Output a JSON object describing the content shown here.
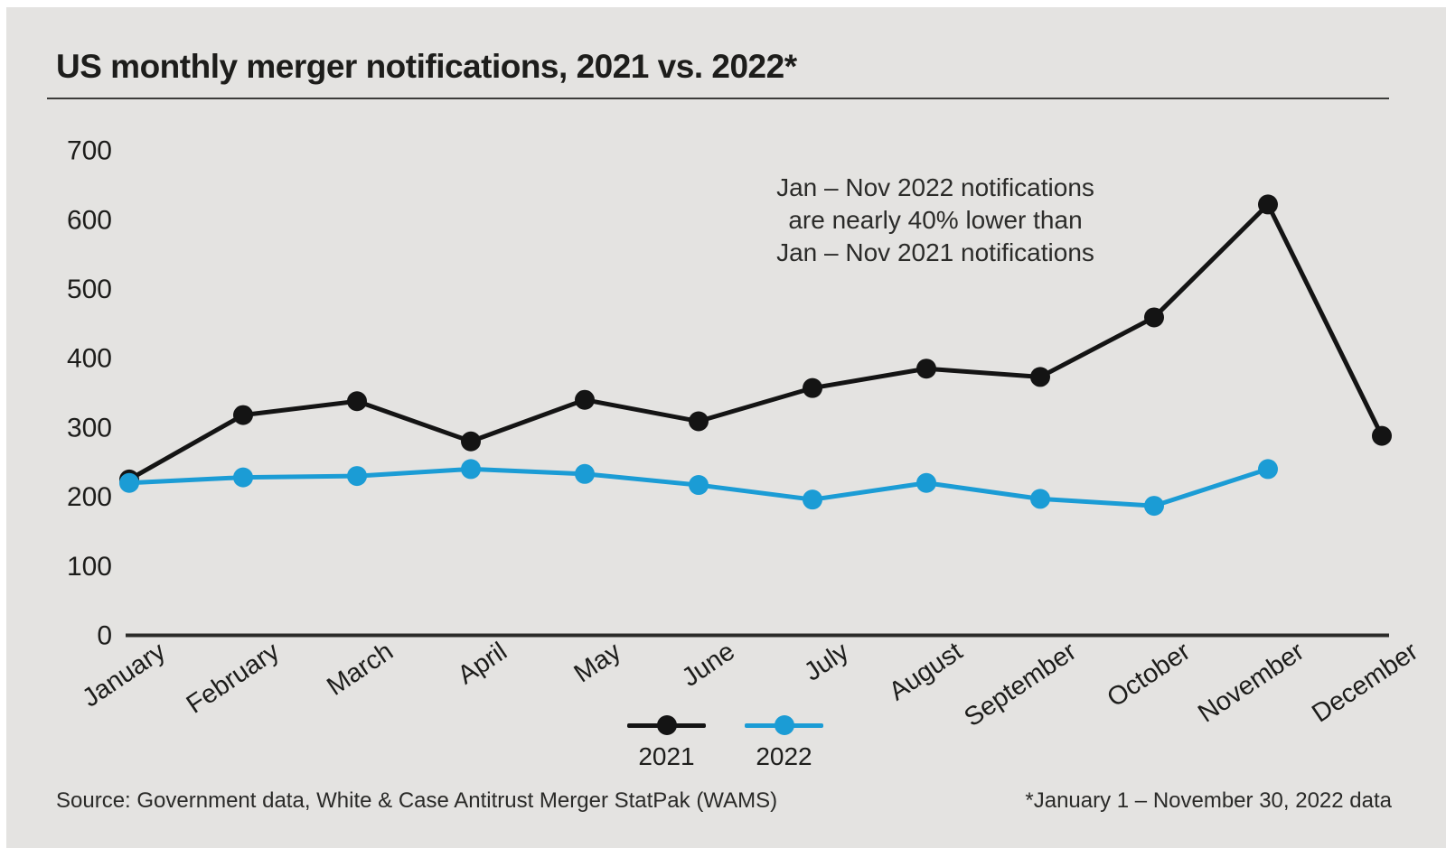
{
  "title": "US monthly merger notifications, 2021 vs. 2022*",
  "annotation": {
    "line1": "Jan – Nov 2022 notifications",
    "line2": "are nearly 40% lower than",
    "line3": "Jan – Nov 2021 notifications"
  },
  "source": "Source: Government data, White & Case Antitrust Merger StatPak (WAMS)",
  "footnote": "*January 1 – November 30, 2022 data",
  "colors": {
    "panel_background": "#e4e3e1",
    "text": "#1d1d1b",
    "axis": "#2b2b29",
    "series_2021": "#141414",
    "series_2022": "#1b9cd5"
  },
  "chart_data": {
    "type": "line",
    "title": "US monthly merger notifications, 2021 vs. 2022*",
    "categories": [
      "January",
      "February",
      "March",
      "April",
      "May",
      "June",
      "July",
      "August",
      "September",
      "October",
      "November",
      "December"
    ],
    "series": [
      {
        "name": "2021",
        "color": "#141414",
        "values": [
          225,
          318,
          338,
          280,
          340,
          309,
          357,
          385,
          373,
          459,
          622,
          288
        ]
      },
      {
        "name": "2022",
        "color": "#1b9cd5",
        "values": [
          220,
          228,
          230,
          240,
          233,
          217,
          196,
          220,
          197,
          187,
          240,
          null
        ]
      }
    ],
    "xlabel": "",
    "ylabel": "",
    "ylim": [
      0,
      700
    ],
    "yticks": [
      0,
      100,
      200,
      300,
      400,
      500,
      600,
      700
    ],
    "grid": false,
    "legend_position": "bottom-center",
    "annotation_text": "Jan – Nov 2022 notifications are nearly 40% lower than Jan – Nov 2021 notifications"
  }
}
